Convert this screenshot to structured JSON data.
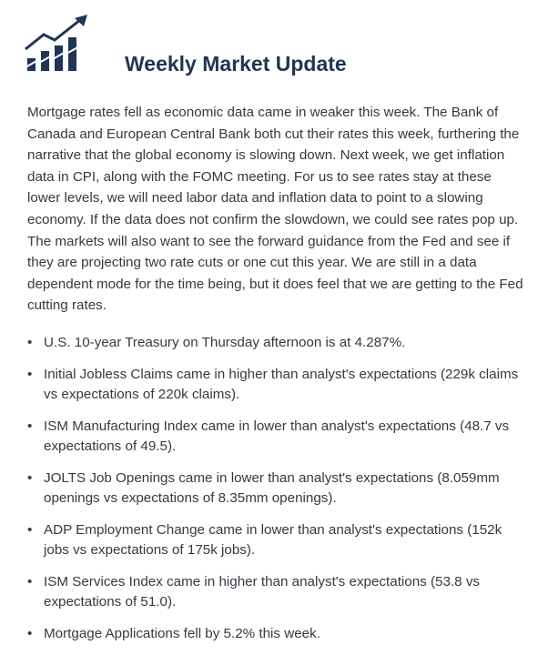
{
  "header": {
    "icon": "bar-chart-trend-arrow-icon",
    "title": "Weekly Market Update"
  },
  "colors": {
    "title": "#1f3553",
    "text": "#333a42",
    "icon": "#1f3553",
    "background": "#ffffff"
  },
  "intro": "Mortgage rates fell as economic data came in weaker this week. The Bank of Canada and European Central Bank both cut their rates this week, furthering the narrative that the global economy is slowing down. Next week, we get inflation data in CPI, along with the FOMC meeting. For us to see rates stay at these lower levels, we will need labor data and inflation data to point to a slowing economy. If the data does not confirm the slowdown, we could see rates pop up. The markets will also want to see the forward guidance from the Fed and see if they are projecting two rate cuts or one cut this year. We are still in a data dependent mode for the time being, but it does feel that we are getting to the Fed cutting rates.",
  "bullet_marker": "•",
  "bullets": [
    "U.S. 10-year Treasury on Thursday afternoon is at 4.287%.",
    "Initial Jobless Claims came in higher than analyst's expectations (229k claims vs expectations of 220k claims).",
    "ISM Manufacturing Index came in lower than analyst's expectations (48.7 vs expectations of 49.5).",
    "JOLTS Job Openings came in lower than analyst's expectations (8.059mm openings vs expectations of 8.35mm openings).",
    "ADP Employment Change came in lower than analyst's expectations (152k jobs vs expectations of 175k jobs).",
    "ISM Services Index came in higher than analyst's expectations (53.8 vs expectations of 51.0).",
    "Mortgage Applications fell by 5.2% this week."
  ]
}
